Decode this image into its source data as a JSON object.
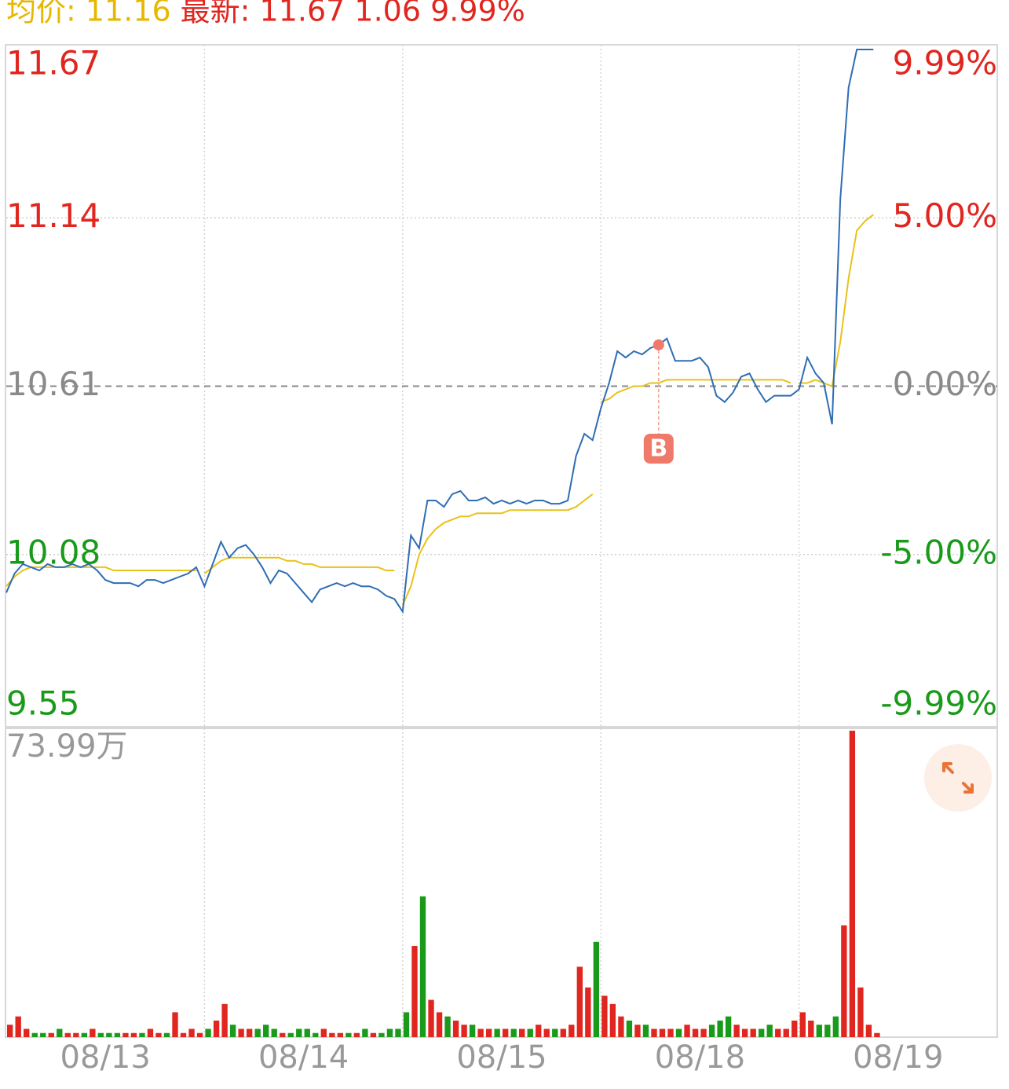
{
  "chart_data": [
    {
      "type": "line",
      "header": [
        {
          "text": "均价: 11.16",
          "color": "#e6b800"
        },
        {
          "text": "最新: 11.67 1.06 9.99%",
          "color": "#e0261f"
        }
      ],
      "xlim": [
        0,
        120
      ],
      "xticks": [
        {
          "value": 12,
          "label": "08/13"
        },
        {
          "value": 36,
          "label": "08/14"
        },
        {
          "value": 60,
          "label": "08/15"
        },
        {
          "value": 84,
          "label": "08/18"
        },
        {
          "value": 108,
          "label": "08/19"
        }
      ],
      "xgrid": [
        24,
        48,
        72,
        96
      ],
      "ylim": [
        9.55,
        11.67
      ],
      "yticks": [
        11.67,
        11.14,
        10.61,
        10.08,
        9.55
      ],
      "y2lim": [
        -9.99,
        9.99
      ],
      "y2ticks": [
        {
          "value": 9.99,
          "label": "9.99%"
        },
        {
          "value": 5,
          "label": "5.00%"
        },
        {
          "value": 0,
          "label": "0.00%"
        },
        {
          "value": -5,
          "label": "-5.00%"
        },
        {
          "value": -9.99,
          "label": "-9.99%"
        }
      ],
      "up_color": "#e0261f",
      "down_color": "#1a9a1a",
      "flat_color": "#8a8a8a",
      "grid": true,
      "series": [
        {
          "name": "价格",
          "color": "#2e6db4",
          "values": [
            9.96,
            10.02,
            10.05,
            10.04,
            10.03,
            10.05,
            10.04,
            10.04,
            10.05,
            10.04,
            10.05,
            10.03,
            10.0,
            9.99,
            9.99,
            9.99,
            9.98,
            10.0,
            10.0,
            9.99,
            10.0,
            10.01,
            10.02,
            10.04,
            9.98,
            10.05,
            10.12,
            10.07,
            10.1,
            10.11,
            10.08,
            10.04,
            9.99,
            10.03,
            10.02,
            9.99,
            9.96,
            9.93,
            9.97,
            9.98,
            9.99,
            9.98,
            9.99,
            9.98,
            9.98,
            9.97,
            9.95,
            9.94,
            9.9,
            10.14,
            10.1,
            10.25,
            10.25,
            10.23,
            10.27,
            10.28,
            10.25,
            10.25,
            10.26,
            10.24,
            10.25,
            10.24,
            10.25,
            10.24,
            10.25,
            10.25,
            10.24,
            10.24,
            10.25,
            10.39,
            10.46,
            10.44,
            10.54,
            10.62,
            10.72,
            10.7,
            10.72,
            10.71,
            10.73,
            10.74,
            10.76,
            10.69,
            10.69,
            10.69,
            10.7,
            10.67,
            10.58,
            10.56,
            10.59,
            10.64,
            10.65,
            10.6,
            10.56,
            10.58,
            10.58,
            10.58,
            10.6,
            10.7,
            10.65,
            10.62,
            10.49,
            11.2,
            11.55,
            11.67,
            11.67,
            11.67
          ]
        },
        {
          "name": "均价",
          "color": "#e8c21a",
          "values": [
            9.98,
            10.01,
            10.03,
            10.04,
            10.04,
            10.04,
            10.04,
            10.04,
            10.04,
            10.04,
            10.04,
            10.04,
            10.04,
            10.03,
            10.03,
            10.03,
            10.03,
            10.03,
            10.03,
            10.03,
            10.03,
            10.03,
            10.03,
            10.03,
            10.02,
            10.04,
            10.06,
            10.07,
            10.07,
            10.07,
            10.07,
            10.07,
            10.07,
            10.07,
            10.06,
            10.06,
            10.05,
            10.05,
            10.04,
            10.04,
            10.04,
            10.04,
            10.04,
            10.04,
            10.04,
            10.04,
            10.03,
            10.03,
            9.92,
            9.98,
            10.08,
            10.13,
            10.16,
            10.18,
            10.19,
            10.2,
            10.2,
            10.21,
            10.21,
            10.21,
            10.21,
            10.22,
            10.22,
            10.22,
            10.22,
            10.22,
            10.22,
            10.22,
            10.22,
            10.23,
            10.25,
            10.27,
            10.56,
            10.57,
            10.59,
            10.6,
            10.61,
            10.61,
            10.62,
            10.62,
            10.63,
            10.63,
            10.63,
            10.63,
            10.63,
            10.63,
            10.63,
            10.63,
            10.63,
            10.63,
            10.63,
            10.63,
            10.63,
            10.63,
            10.63,
            10.62,
            10.62,
            10.62,
            10.63,
            10.62,
            10.61,
            10.75,
            10.95,
            11.1,
            11.13,
            11.15
          ]
        }
      ],
      "annotations": [
        {
          "text": "B",
          "x": 79,
          "y": 10.74
        }
      ]
    },
    {
      "type": "bar",
      "ylim": [
        0,
        73.99
      ],
      "yticks": [
        {
          "value": 73.99,
          "label": "73.99万"
        }
      ],
      "values": [
        3,
        5,
        2,
        1,
        1,
        1,
        2,
        1,
        1,
        1,
        2,
        1,
        1,
        1,
        1,
        1,
        1,
        2,
        1,
        1,
        6,
        1,
        2,
        1,
        2,
        4,
        8,
        3,
        2,
        2,
        2,
        3,
        2,
        1,
        1,
        2,
        2,
        1,
        2,
        1,
        1,
        1,
        1,
        2,
        1,
        1,
        2,
        2,
        6,
        22,
        34,
        9,
        6,
        5,
        4,
        3,
        3,
        2,
        2,
        2,
        2,
        2,
        2,
        2,
        3,
        2,
        2,
        2,
        3,
        17,
        12,
        23,
        10,
        8,
        5,
        4,
        3,
        3,
        2,
        2,
        2,
        2,
        3,
        2,
        2,
        3,
        4,
        5,
        3,
        2,
        2,
        2,
        3,
        2,
        2,
        4,
        6,
        4,
        3,
        3,
        5,
        27,
        74,
        12,
        3,
        1
      ]
    }
  ]
}
